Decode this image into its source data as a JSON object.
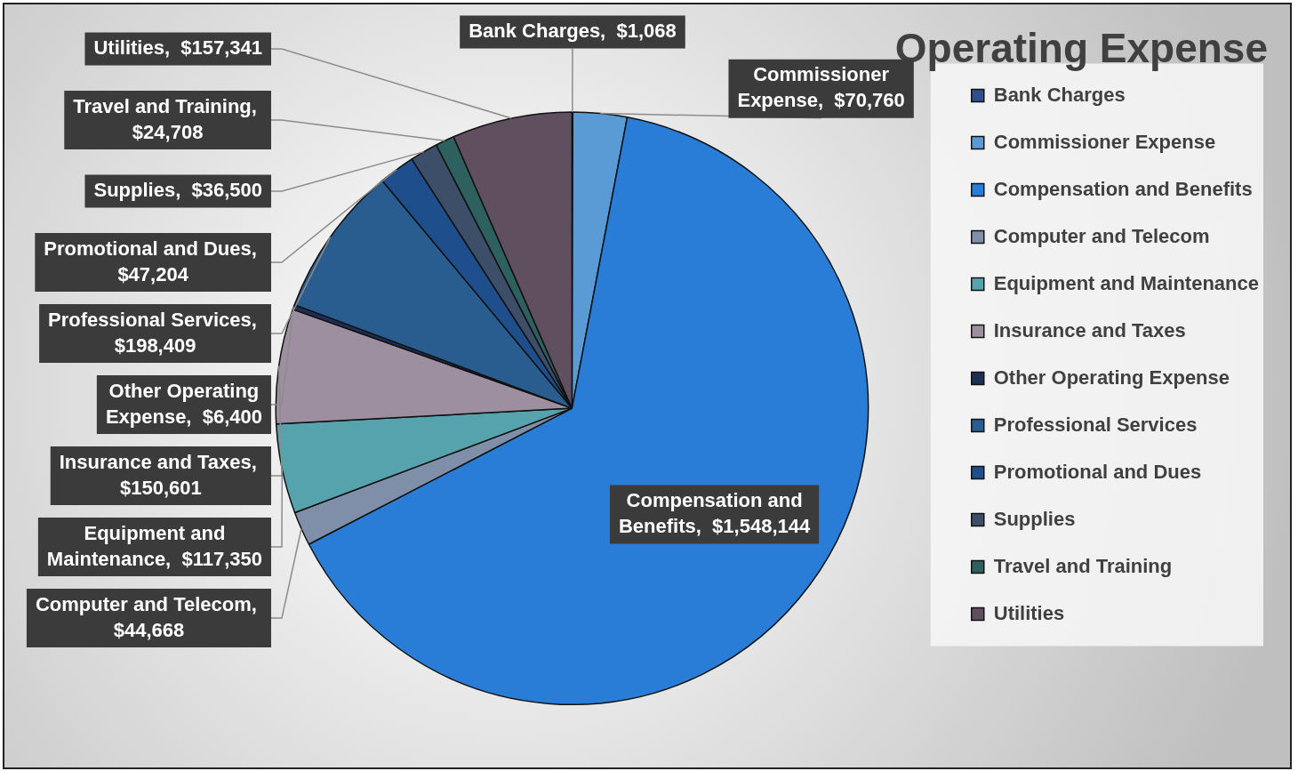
{
  "chart_data": {
    "type": "pie",
    "title": "Operating Expense",
    "categories": [
      "Bank Charges",
      "Commissioner Expense",
      "Compensation and Benefits",
      "Computer and Telecom",
      "Equipment and Maintenance",
      "Insurance and Taxes",
      "Other Operating Expense",
      "Professional Services",
      "Promotional and Dues",
      "Supplies",
      "Travel and Training",
      "Utilities"
    ],
    "values": [
      1068,
      70760,
      1548144,
      44668,
      117350,
      150601,
      6400,
      198409,
      47204,
      36500,
      24708,
      157341
    ],
    "value_labels": [
      "Bank Charges,  $1,068",
      "Commissioner Expense,  $70,760",
      "Compensation and Benefits,  $1,548,144",
      "Computer and Telecom,  $44,668",
      "Equipment and Maintenance,  $117,350",
      "Insurance and Taxes,  $150,601",
      "Other Operating Expense,  $6,400",
      "Professional Services,  $198,409",
      "Promotional and Dues,  $47,204",
      "Supplies,  $36,500",
      "Travel and Training,  $24,708",
      "Utilities,  $157,341"
    ],
    "colors": [
      "#2f4f8f",
      "#5b9bd5",
      "#2a7dd6",
      "#7f8fa9",
      "#56a3ad",
      "#9e8fa0",
      "#1e2f55",
      "#2a5d8f",
      "#1f4e8c",
      "#3d4f68",
      "#2e6060",
      "#5f4f5f"
    ],
    "legend": "right"
  }
}
